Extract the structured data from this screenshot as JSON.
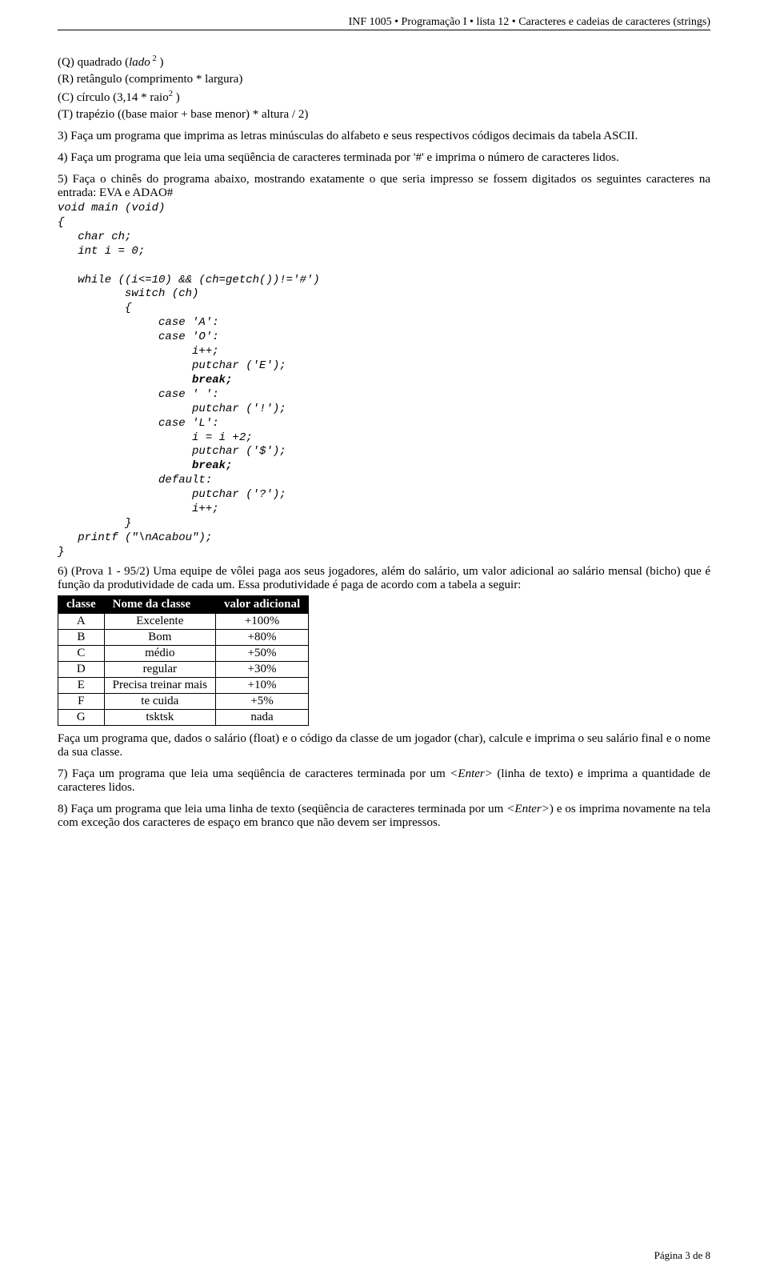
{
  "header": "INF 1005 • Programação I • lista 12 • Caracteres e cadeias de caracteres (strings)",
  "lines": {
    "qQ_a": "(Q) quadrado (",
    "qQ_lado": "lado",
    "qQ_b": ")",
    "qR": "(R) retângulo (comprimento * largura)",
    "qC_a": "(C) círculo (3,14 * raio",
    "qC_b": " )",
    "qT": "(T) trapézio ((base maior + base menor) * altura / 2)"
  },
  "q3": "3)  Faça um programa que imprima as letras minúsculas do alfabeto e seus respectivos códigos decimais da tabela ASCII.",
  "q4": "4)  Faça um programa que leia uma seqüência de caracteres terminada por '#' e imprima o número de caracteres lidos.",
  "q5": "5)  Faça o chinês do programa abaixo, mostrando exatamente o que seria impresso se fossem digitados os seguintes caracteres na entrada: EVA e ADAO#",
  "code": [
    "void main (void)",
    "{",
    "   char ch;",
    "   int i = 0;",
    "",
    "   while ((i<=10) && (ch=getch())!='#')",
    "          switch (ch)",
    "          {",
    "               case 'A':",
    "               case 'O':",
    "                    i++;",
    "                    putchar ('E');",
    "                    break;",
    "               case ' ':",
    "                    putchar ('!');",
    "               case 'L':",
    "                    i = i +2;",
    "                    putchar ('$');",
    "                    break;",
    "               default:",
    "                    putchar ('?');",
    "                    i++;",
    "          }",
    "   printf (\"\\nAcabou\");",
    "}"
  ],
  "code_bold_indices": [
    12,
    18
  ],
  "q6": "6)  (Prova 1 - 95/2) Uma equipe de vôlei paga aos seus jogadores, além do salário, um valor adicional ao salário mensal (bicho) que é função da produtividade de cada um. Essa produtividade é paga de acordo com a tabela a seguir:",
  "table": {
    "headers": [
      "classe",
      "Nome da classe",
      "valor adicional"
    ],
    "rows": [
      [
        "A",
        "Excelente",
        "+100%"
      ],
      [
        "B",
        "Bom",
        "+80%"
      ],
      [
        "C",
        "médio",
        "+50%"
      ],
      [
        "D",
        "regular",
        "+30%"
      ],
      [
        "E",
        "Precisa treinar mais",
        "+10%"
      ],
      [
        "F",
        "te cuida",
        "+5%"
      ],
      [
        "G",
        "tsktsk",
        "nada"
      ]
    ]
  },
  "q6b": "Faça um programa que, dados o salário (float) e o código da classe de um jogador (char), calcule e imprima o seu salário final e o nome da sua classe.",
  "q7_a": "7)  Faça um programa que leia uma seqüência de caracteres terminada por um ",
  "q7_enter": "<Enter>",
  "q7_b": " (linha de texto) e imprima a quantidade de caracteres lidos.",
  "q8_a": "8)  Faça um programa que leia uma linha de texto (seqüência de caracteres terminada por um ",
  "q8_enter": "<Enter>",
  "q8_b": ") e os imprima novamente na tela com exceção dos caracteres de espaço em branco que não devem ser impressos.",
  "footer": "Página 3 de 8"
}
